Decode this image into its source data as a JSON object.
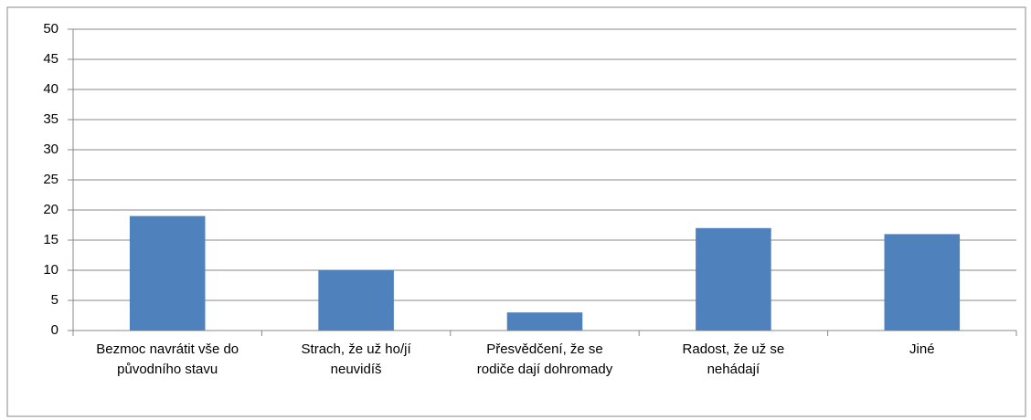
{
  "chart_data": {
    "type": "bar",
    "categories": [
      "Bezmoc navrátit vše do původního stavu",
      "Strach, že už ho/jí neuvidíš",
      "Přesvědčení, že se rodiče dají dohromady",
      "Radost, že už se nehádají",
      "Jiné"
    ],
    "values": [
      19,
      10,
      3,
      17,
      16
    ],
    "color": "#4f81bd",
    "ylim": [
      0,
      50
    ],
    "yticks": [
      0,
      5,
      10,
      15,
      20,
      25,
      30,
      35,
      40,
      45,
      50
    ],
    "grid": true
  }
}
